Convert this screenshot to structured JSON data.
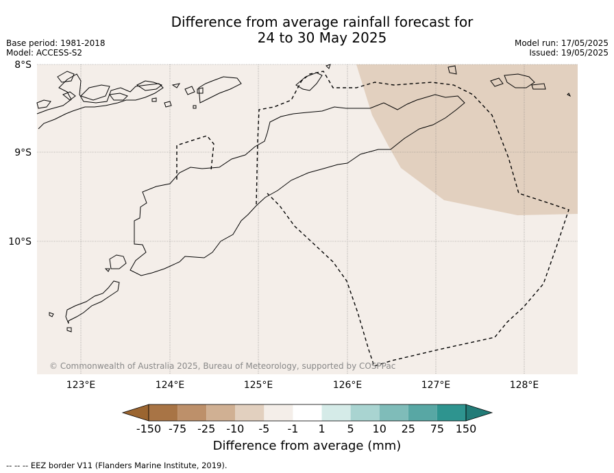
{
  "title_line1": "Difference from average rainfall forecast for",
  "title_line2": "24 to 30 May 2025",
  "meta_left": {
    "base_period": "Base period: 1981-2018",
    "model": "Model: ACCESS-S2"
  },
  "meta_right": {
    "model_run": "Model run: 17/05/2025",
    "issued": "Issued: 19/05/2025"
  },
  "lat_labels": [
    "8°S",
    "9°S",
    "10°S"
  ],
  "lon_labels": [
    "123°E",
    "124°E",
    "125°E",
    "126°E",
    "127°E",
    "128°E"
  ],
  "copyright": "© Commonwealth of Australia 2025, Bureau of Meteorology, supported by COSPPac",
  "colorbar": {
    "ticks": [
      "-150",
      "-75",
      "-25",
      "-10",
      "-5",
      "-1",
      "1",
      "5",
      "10",
      "25",
      "75",
      "150"
    ],
    "colors": [
      "#9b6530",
      "#a87445",
      "#bd906a",
      "#d0b093",
      "#e2d0bf",
      "#f4eee9",
      "#ffffff",
      "#d5ebe8",
      "#a9d4d1",
      "#7fbcb9",
      "#58a7a4",
      "#2e948f",
      "#227b77"
    ],
    "label": "Difference from average (mm)"
  },
  "footer": "--  --  -- EEZ border V11 (Flanders Marine Institute, 2019).",
  "colors": {
    "map_background": "#f4eee9",
    "drier_region": "#e2d0bf",
    "land_outline": "#000000"
  }
}
